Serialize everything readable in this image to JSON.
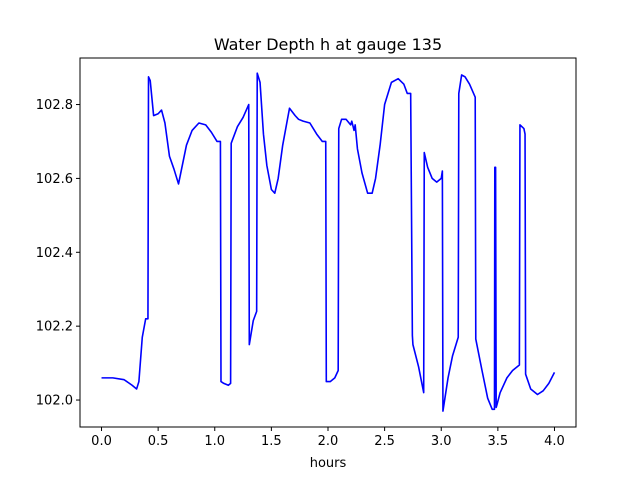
{
  "chart_data": {
    "type": "line",
    "title": "Water Depth h at gauge 135",
    "xlabel": "hours",
    "ylabel": "",
    "xlim": [
      -0.19,
      4.19
    ],
    "ylim": [
      101.927,
      102.926
    ],
    "x_ticks": [
      0.0,
      0.5,
      1.0,
      1.5,
      2.0,
      2.5,
      3.0,
      3.5,
      4.0
    ],
    "x_tick_labels": [
      "0.0",
      "0.5",
      "1.0",
      "1.5",
      "2.0",
      "2.5",
      "3.0",
      "3.5",
      "4.0"
    ],
    "y_ticks": [
      102.0,
      102.2,
      102.4,
      102.6,
      102.8
    ],
    "y_tick_labels": [
      "102.0",
      "102.2",
      "102.4",
      "102.6",
      "102.8"
    ],
    "grid": false,
    "series": [
      {
        "color": "#0000ff",
        "x": [
          0.0,
          0.1,
          0.2,
          0.27,
          0.31,
          0.33,
          0.36,
          0.39,
          0.41,
          0.415,
          0.43,
          0.46,
          0.5,
          0.53,
          0.56,
          0.6,
          0.64,
          0.68,
          0.71,
          0.75,
          0.8,
          0.86,
          0.92,
          0.97,
          1.02,
          1.05,
          1.055,
          1.08,
          1.12,
          1.14,
          1.145,
          1.2,
          1.25,
          1.3,
          1.305,
          1.34,
          1.37,
          1.375,
          1.4,
          1.43,
          1.46,
          1.5,
          1.53,
          1.56,
          1.6,
          1.66,
          1.71,
          1.74,
          1.78,
          1.84,
          1.9,
          1.95,
          1.98,
          1.985,
          2.02,
          2.06,
          2.09,
          2.095,
          2.12,
          2.16,
          2.2,
          2.21,
          2.23,
          2.24,
          2.26,
          2.3,
          2.35,
          2.39,
          2.42,
          2.46,
          2.5,
          2.56,
          2.62,
          2.67,
          2.7,
          2.73,
          2.745,
          2.75,
          2.8,
          2.845,
          2.85,
          2.88,
          2.92,
          2.96,
          3.0,
          3.01,
          3.015,
          3.06,
          3.1,
          3.15,
          3.155,
          3.18,
          3.21,
          3.25,
          3.3,
          3.305,
          3.36,
          3.41,
          3.45,
          3.47,
          3.473,
          3.48,
          3.485,
          3.49,
          3.52,
          3.58,
          3.63,
          3.69,
          3.695,
          3.73,
          3.74,
          3.745,
          3.79,
          3.85,
          3.9,
          3.95,
          4.0
        ],
        "y": [
          102.06,
          102.06,
          102.055,
          102.04,
          102.03,
          102.05,
          102.17,
          102.22,
          102.22,
          102.875,
          102.865,
          102.77,
          102.775,
          102.785,
          102.75,
          102.66,
          102.625,
          102.585,
          102.63,
          102.69,
          102.73,
          102.75,
          102.745,
          102.725,
          102.7,
          102.7,
          102.05,
          102.045,
          102.04,
          102.045,
          102.695,
          102.74,
          102.765,
          102.8,
          102.15,
          102.215,
          102.24,
          102.885,
          102.86,
          102.72,
          102.635,
          102.57,
          102.56,
          102.6,
          102.69,
          102.79,
          102.77,
          102.76,
          102.755,
          102.75,
          102.72,
          102.7,
          102.7,
          102.05,
          102.05,
          102.06,
          102.08,
          102.735,
          102.76,
          102.76,
          102.745,
          102.755,
          102.73,
          102.745,
          102.68,
          102.615,
          102.56,
          102.56,
          102.6,
          102.69,
          102.8,
          102.86,
          102.87,
          102.855,
          102.83,
          102.83,
          102.175,
          102.15,
          102.09,
          102.02,
          102.67,
          102.63,
          102.6,
          102.59,
          102.6,
          102.62,
          101.97,
          102.06,
          102.12,
          102.17,
          102.83,
          102.88,
          102.875,
          102.855,
          102.82,
          102.165,
          102.08,
          102.005,
          101.975,
          101.975,
          102.63,
          102.63,
          101.98,
          101.985,
          102.02,
          102.06,
          102.08,
          102.095,
          102.745,
          102.735,
          102.72,
          102.07,
          102.03,
          102.015,
          102.025,
          102.045,
          102.075
        ]
      }
    ]
  }
}
